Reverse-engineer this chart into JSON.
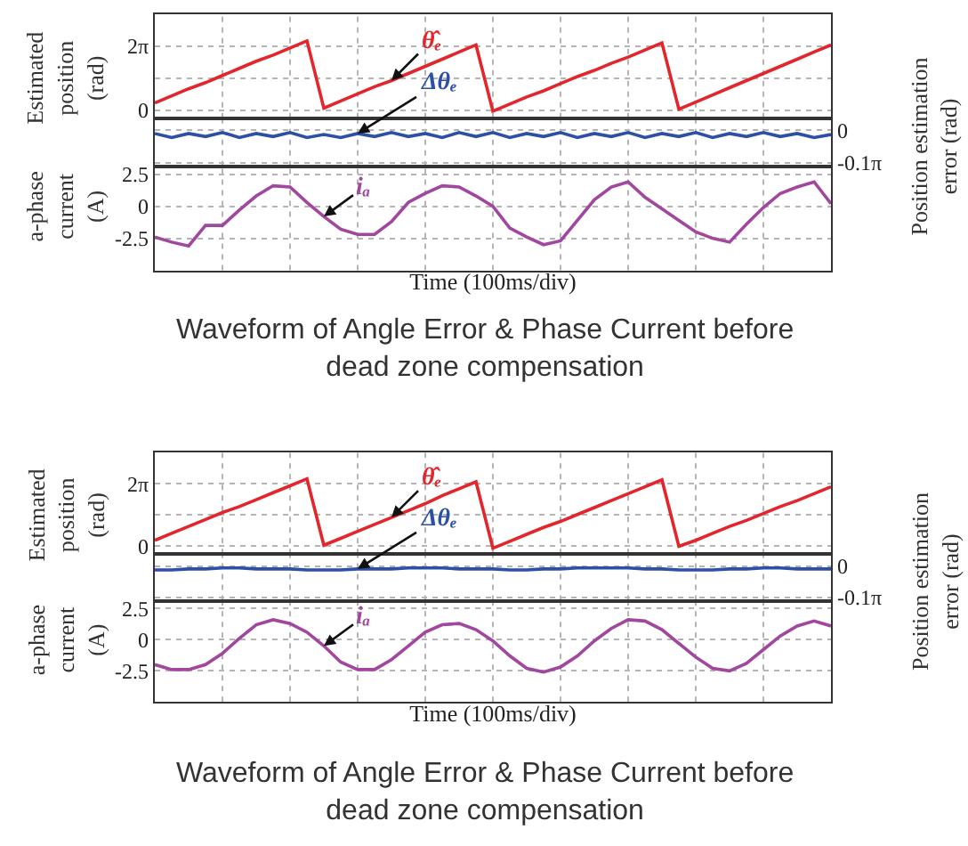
{
  "chart_data": [
    {
      "type": "line",
      "title": "Waveform of Angle Error & Phase Current before dead zone compensation",
      "ylabel": "Estimated position (rad)",
      "grid": true,
      "tick_labels": "y",
      "categories": [
        null,
        null,
        null,
        null,
        null,
        null,
        null,
        null,
        null,
        null,
        null,
        null,
        null,
        null,
        null,
        null,
        null,
        null,
        null,
        null,
        null,
        null,
        null,
        null,
        null,
        null,
        null,
        null,
        null,
        null,
        null,
        null,
        null,
        null,
        null,
        null,
        null,
        null,
        null,
        null,
        null
      ],
      "ylim": [
        -0.785,
        9.425
      ],
      "yticks": [
        {
          "value": 0,
          "label": "0"
        },
        {
          "value": 3.142,
          "label": null
        },
        {
          "value": 6.283,
          "label": "2π"
        }
      ],
      "series": [
        {
          "name": "θ̂ₑ",
          "color": "#e3262b",
          "values": [
            0.7,
            1.4,
            2.1,
            2.7,
            3.4,
            4.1,
            4.8,
            5.4,
            6.1,
            6.8,
            0.2,
            0.9,
            1.6,
            2.3,
            2.9,
            3.6,
            4.3,
            5.0,
            5.7,
            6.4,
            -0.1,
            0.6,
            1.3,
            1.9,
            2.6,
            3.3,
            3.9,
            4.6,
            5.2,
            5.9,
            6.6,
            0.1,
            0.8,
            1.5,
            2.2,
            2.9,
            3.6,
            4.3,
            5.0,
            5.7,
            6.4
          ]
        }
      ]
    },
    {
      "type": "line",
      "ylabel": "Position estimation error (rad)",
      "grid": true,
      "tick_labels": "y",
      "categories": [
        null,
        null,
        null,
        null,
        null,
        null,
        null,
        null,
        null,
        null,
        null,
        null,
        null,
        null,
        null,
        null,
        null,
        null,
        null,
        null,
        null,
        null,
        null,
        null,
        null,
        null,
        null,
        null,
        null,
        null,
        null,
        null,
        null,
        null,
        null,
        null,
        null,
        null,
        null,
        null,
        null
      ],
      "ylim": [
        -0.35,
        0.12
      ],
      "yticks": [
        {
          "value": -0.314,
          "label": "-0.1π"
        },
        {
          "value": 0,
          "label": "0"
        }
      ],
      "series": [
        {
          "name": "Δθₑ",
          "color": "#2b50a6",
          "values": [
            -0.03,
            -0.07,
            -0.03,
            -0.06,
            -0.02,
            -0.07,
            -0.03,
            -0.06,
            -0.02,
            -0.07,
            -0.04,
            -0.07,
            -0.03,
            -0.06,
            -0.02,
            -0.06,
            -0.03,
            -0.07,
            -0.02,
            -0.06,
            -0.02,
            -0.07,
            -0.03,
            -0.06,
            -0.02,
            -0.07,
            -0.03,
            -0.06,
            -0.02,
            -0.07,
            -0.03,
            -0.06,
            -0.02,
            -0.07,
            -0.03,
            -0.06,
            -0.02,
            -0.06,
            -0.03,
            -0.07,
            -0.04
          ]
        }
      ]
    },
    {
      "type": "line",
      "xlabel": "Time (100ms/div)",
      "ylabel": "a-phase current (A)",
      "grid": true,
      "tick_labels": "y",
      "categories": [
        null,
        null,
        null,
        null,
        null,
        null,
        null,
        null,
        null,
        null,
        null,
        null,
        null,
        null,
        null,
        null,
        null,
        null,
        null,
        null,
        null,
        null,
        null,
        null,
        null,
        null,
        null,
        null,
        null,
        null,
        null,
        null,
        null,
        null,
        null,
        null,
        null,
        null,
        null,
        null,
        null
      ],
      "ylim": [
        -5,
        3.125
      ],
      "yticks": [
        -2.5,
        0,
        2.5
      ],
      "series": [
        {
          "name": "iₐ",
          "color": "#a1479f",
          "values": [
            -2.4,
            -2.8,
            -3.1,
            -1.5,
            -1.5,
            -0.3,
            0.8,
            1.6,
            1.5,
            0.3,
            -0.8,
            -1.8,
            -2.2,
            -2.2,
            -1.2,
            0.3,
            1.0,
            1.6,
            1.5,
            0.8,
            0,
            -1.7,
            -2.4,
            -3.0,
            -2.7,
            -1.1,
            0.5,
            1.5,
            1.9,
            0.7,
            -0.2,
            -1.1,
            -2.0,
            -2.5,
            -2.8,
            -1.4,
            -0.1,
            1.0,
            1.5,
            1.9,
            0.2
          ]
        }
      ]
    },
    {
      "type": "line",
      "title": "Waveform of Angle Error & Phase Current before dead zone compensation",
      "ylabel": "Estimated position (rad)",
      "grid": true,
      "tick_labels": "y",
      "categories": [
        null,
        null,
        null,
        null,
        null,
        null,
        null,
        null,
        null,
        null,
        null,
        null,
        null,
        null,
        null,
        null,
        null,
        null,
        null,
        null,
        null,
        null,
        null,
        null,
        null,
        null,
        null,
        null,
        null,
        null,
        null,
        null,
        null,
        null,
        null,
        null,
        null,
        null,
        null,
        null,
        null
      ],
      "ylim": [
        -0.785,
        9.425
      ],
      "yticks": [
        {
          "value": 0,
          "label": "0"
        },
        {
          "value": 3.142,
          "label": null
        },
        {
          "value": 6.283,
          "label": "2π"
        }
      ],
      "series": [
        {
          "name": "θ̂ₑ",
          "color": "#e3262b",
          "values": [
            0.6,
            1.3,
            2.0,
            2.7,
            3.4,
            4.0,
            4.7,
            5.4,
            6.1,
            6.8,
            0.1,
            0.8,
            1.5,
            2.2,
            2.9,
            3.6,
            4.3,
            5.1,
            5.8,
            6.5,
            -0.2,
            0.5,
            1.2,
            1.9,
            2.5,
            3.2,
            3.9,
            4.6,
            5.3,
            6.0,
            6.7,
            0.0,
            0.6,
            1.3,
            2.0,
            2.6,
            3.3,
            4.0,
            4.6,
            5.3,
            6.0
          ]
        }
      ]
    },
    {
      "type": "line",
      "ylabel": "Position estimation error (rad)",
      "grid": true,
      "tick_labels": "y",
      "categories": [
        null,
        null,
        null,
        null,
        null,
        null,
        null,
        null,
        null,
        null,
        null,
        null,
        null,
        null,
        null,
        null,
        null,
        null,
        null,
        null,
        null,
        null,
        null,
        null,
        null,
        null,
        null,
        null,
        null,
        null,
        null,
        null,
        null,
        null,
        null,
        null,
        null,
        null,
        null,
        null,
        null
      ],
      "ylim": [
        -0.35,
        0.12
      ],
      "yticks": [
        {
          "value": -0.314,
          "label": "-0.1π"
        },
        {
          "value": 0,
          "label": "0"
        }
      ],
      "series": [
        {
          "name": "Δθₑ",
          "color": "#2b50a6",
          "values": [
            -0.04,
            -0.04,
            -0.03,
            -0.03,
            -0.02,
            -0.02,
            -0.03,
            -0.03,
            -0.03,
            -0.04,
            -0.04,
            -0.04,
            -0.03,
            -0.03,
            -0.03,
            -0.02,
            -0.02,
            -0.02,
            -0.03,
            -0.03,
            -0.03,
            -0.04,
            -0.04,
            -0.03,
            -0.03,
            -0.02,
            -0.02,
            -0.02,
            -0.02,
            -0.03,
            -0.03,
            -0.04,
            -0.04,
            -0.04,
            -0.03,
            -0.03,
            -0.02,
            -0.02,
            -0.03,
            -0.03,
            -0.03
          ]
        }
      ]
    },
    {
      "type": "line",
      "xlabel": "Time (100ms/div)",
      "ylabel": "a-phase current (A)",
      "grid": true,
      "tick_labels": "y",
      "categories": [
        null,
        null,
        null,
        null,
        null,
        null,
        null,
        null,
        null,
        null,
        null,
        null,
        null,
        null,
        null,
        null,
        null,
        null,
        null,
        null,
        null,
        null,
        null,
        null,
        null,
        null,
        null,
        null,
        null,
        null,
        null,
        null,
        null,
        null,
        null,
        null,
        null,
        null,
        null,
        null,
        null
      ],
      "ylim": [
        -5,
        3.125
      ],
      "yticks": [
        -2.5,
        0,
        2.5
      ],
      "series": [
        {
          "name": "iₐ",
          "color": "#a1479f",
          "values": [
            -2.0,
            -2.4,
            -2.4,
            -2.0,
            -1.1,
            0.1,
            1.2,
            1.6,
            1.3,
            0.6,
            -0.5,
            -1.8,
            -2.4,
            -2.4,
            -1.6,
            -0.5,
            0.6,
            1.2,
            1.3,
            0.8,
            -0.1,
            -1.3,
            -2.3,
            -2.6,
            -2.2,
            -1.3,
            -0.1,
            0.9,
            1.6,
            1.5,
            0.8,
            -0.3,
            -1.4,
            -2.3,
            -2.5,
            -1.9,
            -0.8,
            0.3,
            1.1,
            1.5,
            1.1
          ]
        }
      ]
    }
  ]
}
